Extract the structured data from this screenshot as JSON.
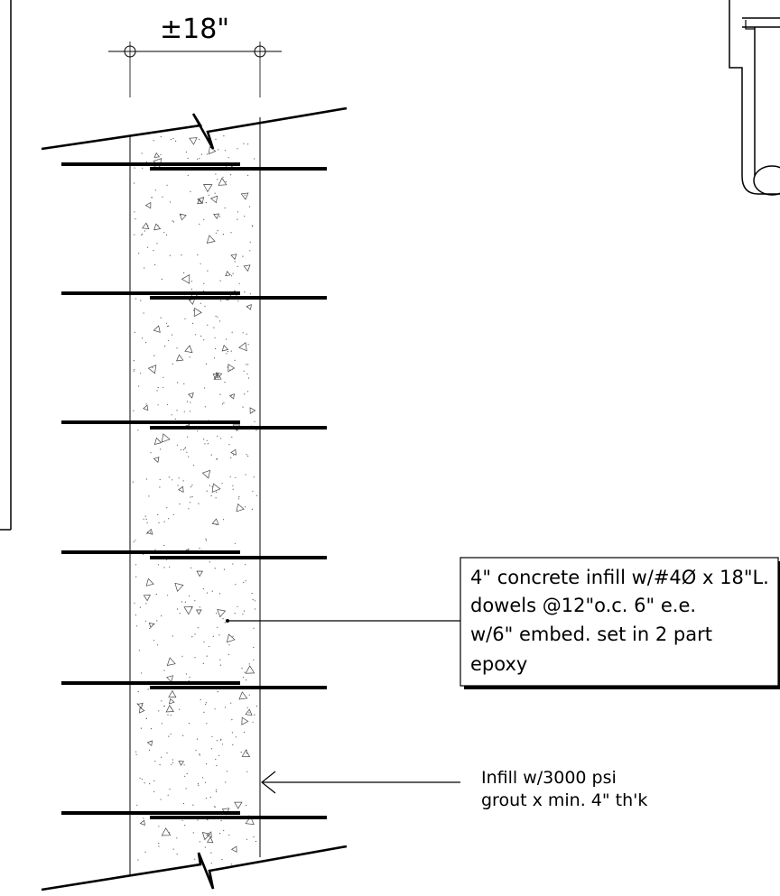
{
  "dimension": {
    "label": "±18\""
  },
  "callouts": {
    "dowel_note": {
      "lines": [
        "4\" concrete infill w/#4Ø x 18\"L.",
        "dowels @12\"o.c. 6\" e.e.",
        "w/6\" embed. set in 2 part",
        "epoxy"
      ]
    },
    "grout_note": {
      "lines": [
        "Infill w/3000 psi",
        "grout x min. 4\" th'k"
      ]
    }
  },
  "dowels": {
    "count": 6
  }
}
